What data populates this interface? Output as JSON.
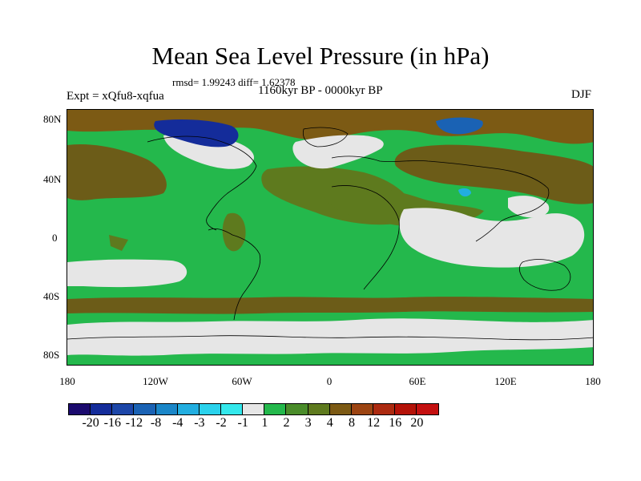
{
  "title": "Mean Sea Level Pressure (in hPa)",
  "stats": "rmsd= 1.99243 diff= 1.62378",
  "period": "1160kyr BP - 0000kyr BP",
  "experiment": "Expt = xQfu8-xqfua",
  "season": "DJF",
  "lat_labels": [
    "80N",
    "40N",
    "0",
    "40S",
    "80S"
  ],
  "lon_labels": [
    "180",
    "120W",
    "60W",
    "0",
    "60E",
    "120E",
    "180"
  ],
  "colorbar": {
    "labels": [
      "-20",
      "-16",
      "-12",
      "-8",
      "-4",
      "-3",
      "-2",
      "-1",
      "1",
      "2",
      "3",
      "4",
      "8",
      "12",
      "16",
      "20"
    ],
    "colors": [
      "#1b0a6e",
      "#142c9a",
      "#1c46a8",
      "#1a62b4",
      "#1a86c8",
      "#22aee0",
      "#2ad2ec",
      "#34e8ec",
      "#e6e6e6",
      "#24b84c",
      "#4a8c2a",
      "#5e7a1e",
      "#7c5a14",
      "#9c4412",
      "#ac2a10",
      "#b41208",
      "#c41010"
    ]
  },
  "colors": {
    "ocean_base": "#24b84c",
    "light": "#e6e6e6",
    "olive": "#5e7a1e",
    "dark_olive": "#6c5c18",
    "brown": "#7c5a14",
    "blue": "#1a62b4",
    "deep_blue": "#142c9a",
    "cyan": "#22aee0"
  }
}
